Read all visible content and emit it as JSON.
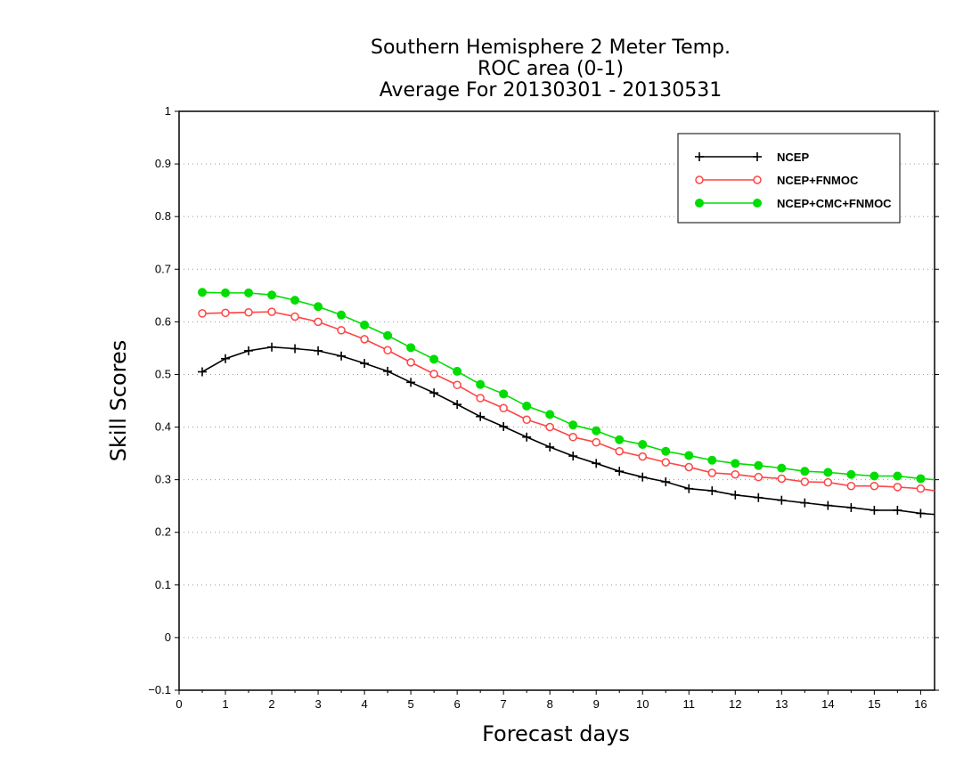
{
  "chart_data": {
    "type": "line",
    "title_lines": [
      "Southern Hemisphere 2 Meter Temp.",
      "ROC area (0-1)",
      "Average For 20130301 - 20130531"
    ],
    "xlabel": "Forecast days",
    "ylabel": "Skill Scores",
    "xlim": [
      0,
      16.3
    ],
    "ylim": [
      -0.1,
      1
    ],
    "x_ticks": [
      "0",
      "1",
      "2",
      "3",
      "4",
      "5",
      "6",
      "7",
      "8",
      "9",
      "10",
      "11",
      "12",
      "13",
      "14",
      "15",
      "16"
    ],
    "y_ticks": [
      "−0.1",
      "0",
      "0.1",
      "0.2",
      "0.3",
      "0.4",
      "0.5",
      "0.6",
      "0.7",
      "0.8",
      "0.9",
      "1"
    ],
    "grid": "horizontal-dotted",
    "legend_position": "top-right",
    "x": [
      0.5,
      1,
      1.5,
      2,
      2.5,
      3,
      3.5,
      4,
      4.5,
      5,
      5.5,
      6,
      6.5,
      7,
      7.5,
      8,
      8.5,
      9,
      9.5,
      10,
      10.5,
      11,
      11.5,
      12,
      12.5,
      13,
      13.5,
      14,
      14.5,
      15,
      15.5,
      16,
      16.3
    ],
    "series": [
      {
        "name": "NCEP",
        "color": "#000000",
        "marker": "plus",
        "values": [
          0.505,
          0.53,
          0.545,
          0.552,
          0.549,
          0.545,
          0.535,
          0.521,
          0.506,
          0.485,
          0.465,
          0.443,
          0.42,
          0.401,
          0.381,
          0.362,
          0.345,
          0.331,
          0.316,
          0.305,
          0.296,
          0.283,
          0.279,
          0.271,
          0.266,
          0.261,
          0.256,
          0.251,
          0.247,
          0.242,
          0.242,
          0.236,
          0.234
        ]
      },
      {
        "name": "NCEP+FNMOC",
        "color": "#ff4444",
        "marker": "open-circle",
        "values": [
          0.616,
          0.617,
          0.618,
          0.619,
          0.61,
          0.6,
          0.584,
          0.567,
          0.546,
          0.523,
          0.501,
          0.48,
          0.455,
          0.436,
          0.414,
          0.4,
          0.381,
          0.371,
          0.354,
          0.344,
          0.333,
          0.324,
          0.313,
          0.31,
          0.305,
          0.302,
          0.296,
          0.295,
          0.288,
          0.288,
          0.286,
          0.283,
          0.279
        ]
      },
      {
        "name": "NCEP+CMC+FNMOC",
        "color": "#00dd00",
        "marker": "filled-circle",
        "values": [
          0.656,
          0.655,
          0.655,
          0.651,
          0.641,
          0.629,
          0.613,
          0.594,
          0.574,
          0.551,
          0.529,
          0.506,
          0.481,
          0.463,
          0.44,
          0.424,
          0.404,
          0.393,
          0.376,
          0.367,
          0.354,
          0.346,
          0.337,
          0.331,
          0.327,
          0.322,
          0.316,
          0.314,
          0.31,
          0.307,
          0.307,
          0.302,
          0.3
        ]
      }
    ]
  }
}
